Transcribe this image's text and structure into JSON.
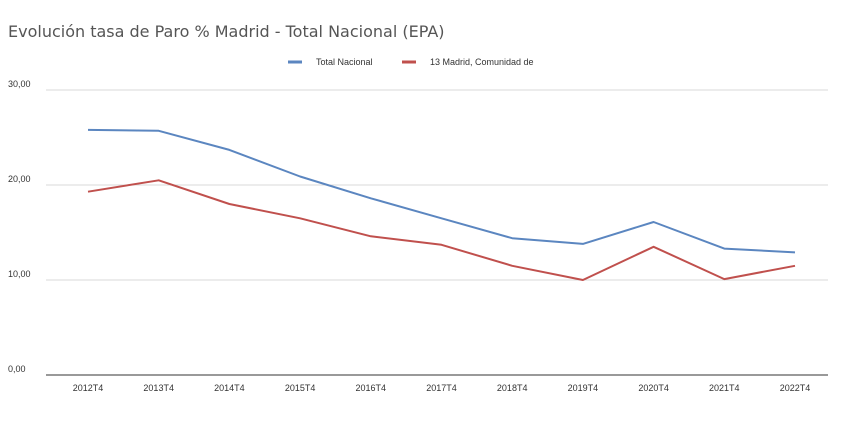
{
  "chart_data": {
    "type": "line",
    "title": "Evolución tasa de Paro % Madrid - Total Nacional (EPA)",
    "categories": [
      "2012T4",
      "2013T4",
      "2014T4",
      "2015T4",
      "2016T4",
      "2017T4",
      "2018T4",
      "2019T4",
      "2020T4",
      "2021T4",
      "2022T4"
    ],
    "y_ticks": [
      "0,00",
      "10,00",
      "20,00",
      "30,00"
    ],
    "ylim": [
      0,
      30
    ],
    "grid": true,
    "legend_position": "top",
    "series": [
      {
        "name": "Total Nacional",
        "color": "#5b86c0",
        "values": [
          25.8,
          25.7,
          23.7,
          20.9,
          18.6,
          16.5,
          14.4,
          13.8,
          16.1,
          13.3,
          12.9
        ]
      },
      {
        "name": "13 Madrid, Comunidad de",
        "color": "#c0504d",
        "values": [
          19.3,
          20.5,
          18.0,
          16.5,
          14.6,
          13.7,
          11.5,
          10.0,
          13.5,
          10.1,
          11.5
        ]
      }
    ]
  }
}
